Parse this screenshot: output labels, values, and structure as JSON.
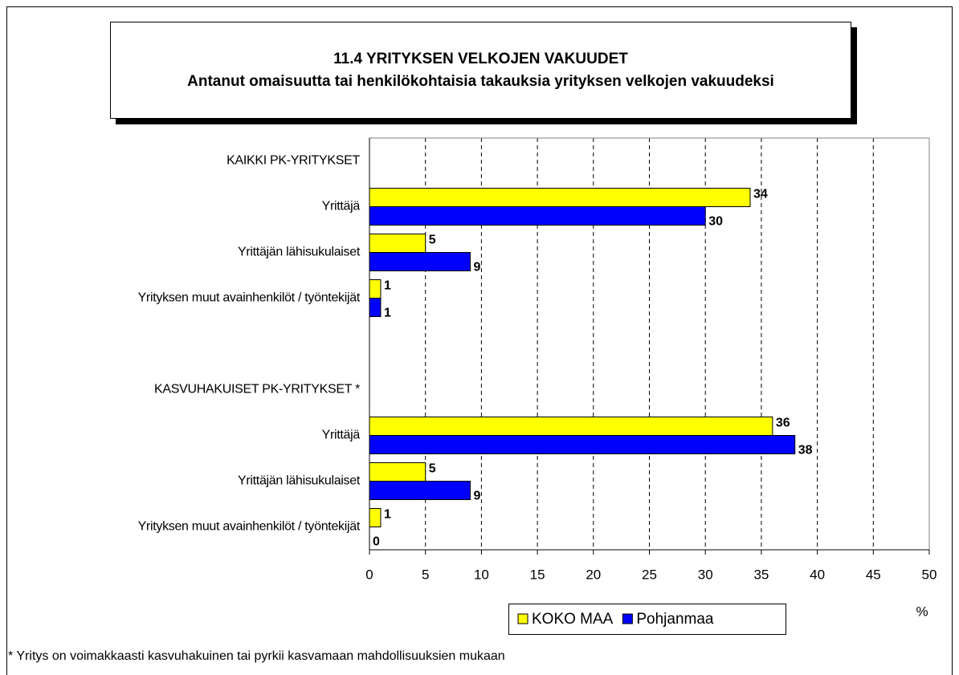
{
  "chart_data": {
    "type": "bar",
    "orientation": "horizontal",
    "title": "11.4 YRITYKSEN VELKOJEN VAKUUDET",
    "subtitle": "Antanut omaisuutta tai henkilökohtaisia takauksia yrityksen velkojen vakuudeksi",
    "categories": [
      "KAIKKI PK-YRITYKSET",
      "Yrittäjä",
      "Yrittäjän lähisukulaiset",
      "Yrityksen muut avainhenkilöt / työntekijät",
      null,
      "KASVUHAKUISET PK-YRITYKSET *",
      "Yrittäjä",
      "Yrittäjän lähisukulaiset",
      "Yrityksen muut avainhenkilöt / työntekijät"
    ],
    "series": [
      {
        "name": "KOKO MAA",
        "color": "#ffff00",
        "values": [
          null,
          34,
          5,
          1,
          null,
          null,
          36,
          5,
          1
        ]
      },
      {
        "name": "Pohjanmaa",
        "color": "#0000ff",
        "values": [
          null,
          30,
          9,
          1,
          null,
          null,
          38,
          9,
          0
        ]
      }
    ],
    "xlim": [
      0,
      50
    ],
    "xticks": [
      0,
      5,
      10,
      15,
      20,
      25,
      30,
      35,
      40,
      45,
      50
    ],
    "xlabel": "%",
    "grid": true,
    "legend": "bottom",
    "note": "* Yritys on voimakkaasti kasvuhakuinen tai pyrkii kasvamaan mahdollisuuksien mukaan"
  }
}
